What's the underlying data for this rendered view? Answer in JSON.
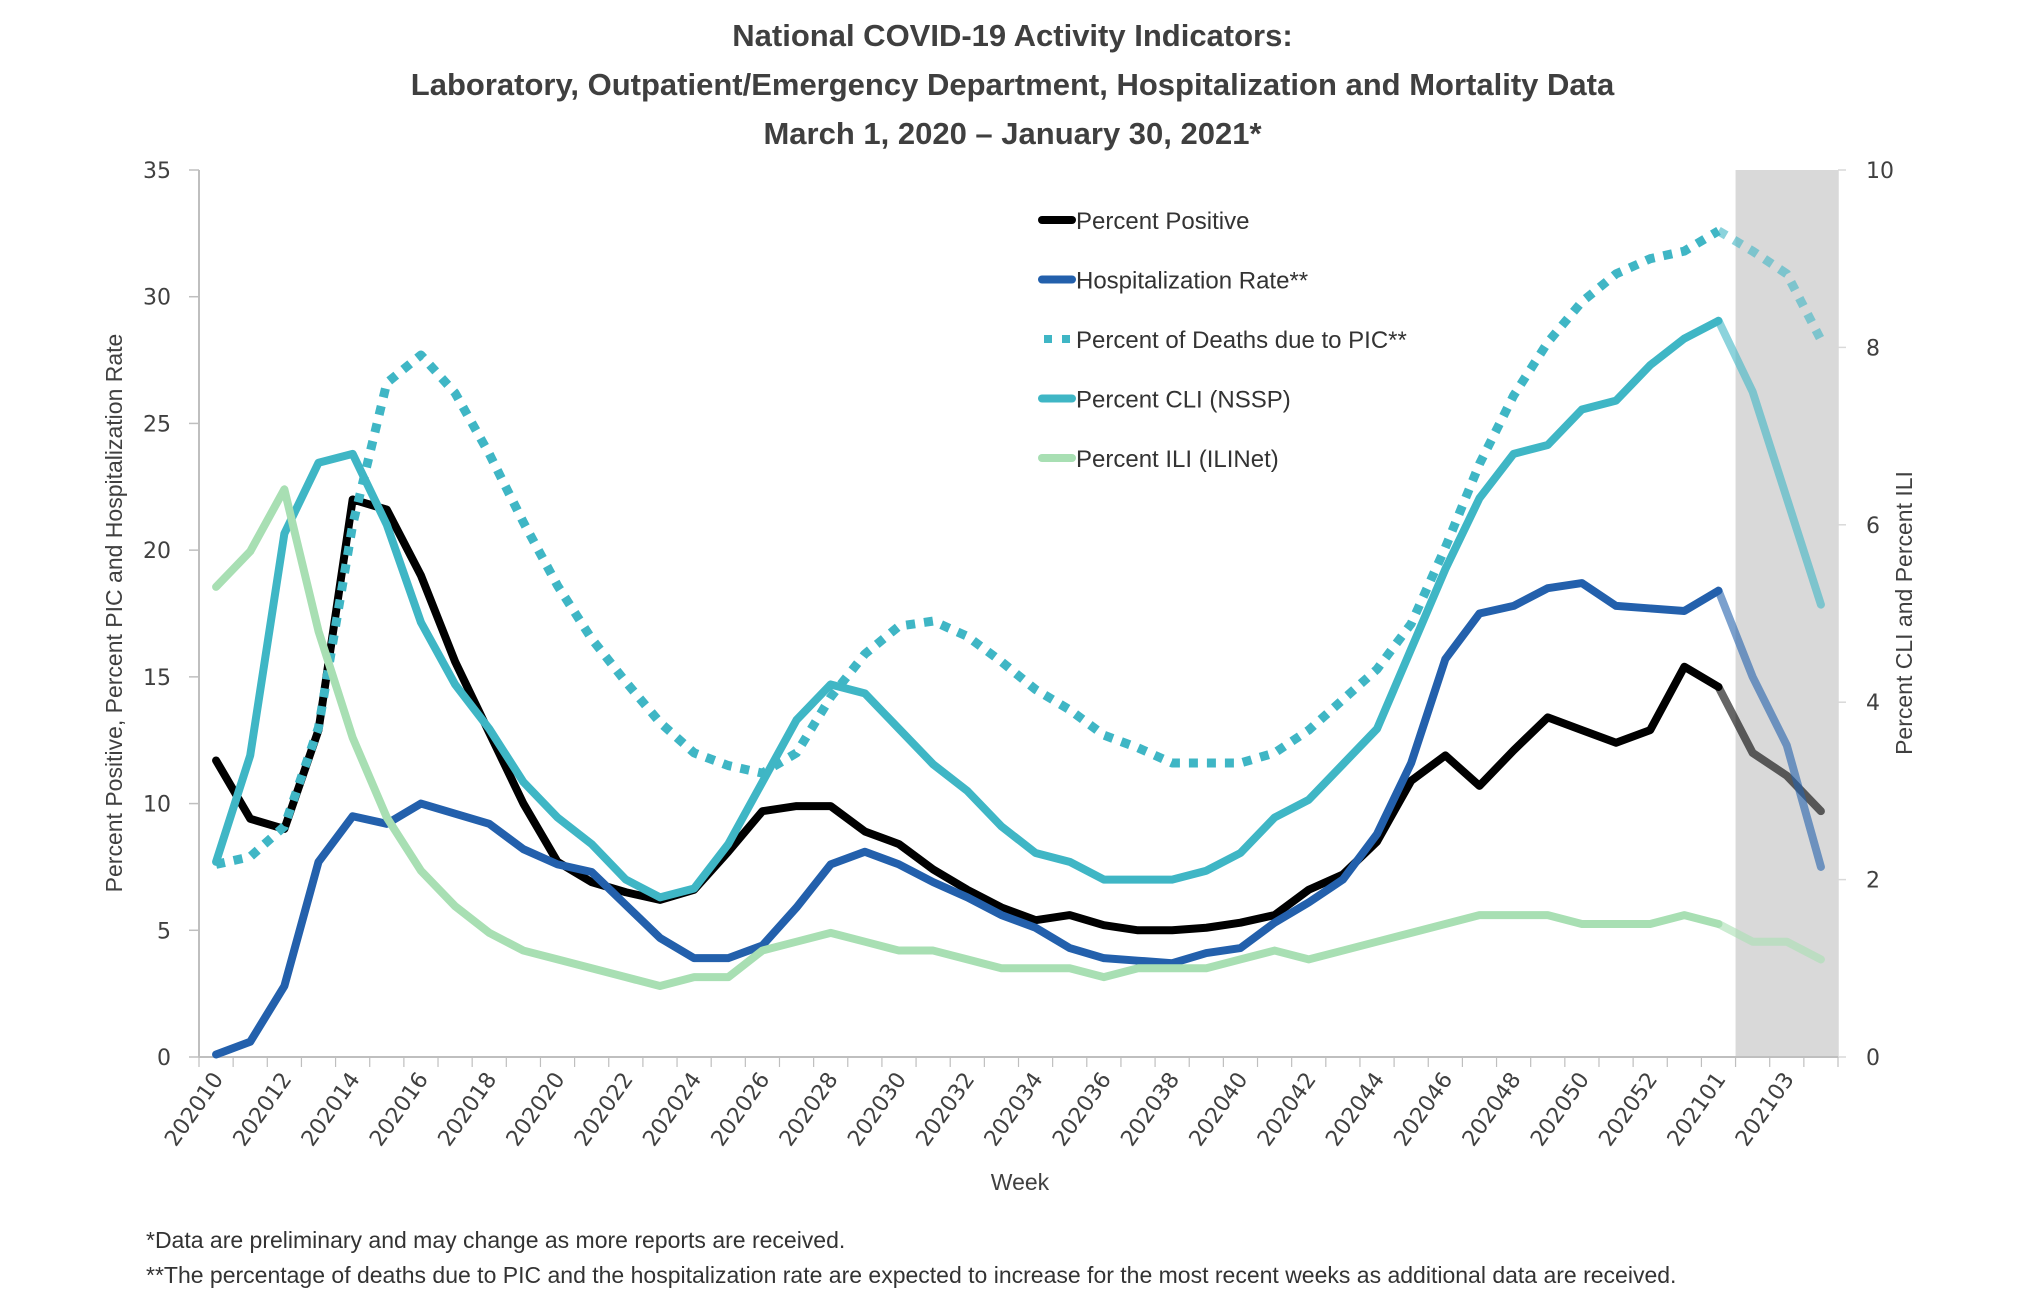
{
  "chart_data": {
    "type": "line",
    "title": [
      "National COVID-19 Activity Indicators:",
      "Laboratory, Outpatient/Emergency Department, Hospitalization and Mortality Data",
      "March 1, 2020 – January 30, 2021*"
    ],
    "xlabel": "Week",
    "ylabel_left": "Percent Positive, Percent PIC and Hospitalization Rate",
    "ylabel_right": "Percent CLI and Percent ILI",
    "ylim_left": [
      0,
      35
    ],
    "ylim_right": [
      0,
      10
    ],
    "yticks_left": [
      "0",
      "5",
      "10",
      "15",
      "20",
      "25",
      "30",
      "35"
    ],
    "yticks_right": [
      "0",
      "2",
      "4",
      "6",
      "8",
      "10"
    ],
    "grid": false,
    "legend_position": "top-center",
    "x": [
      "202010",
      "202011",
      "202012",
      "202013",
      "202014",
      "202015",
      "202016",
      "202017",
      "202018",
      "202019",
      "202020",
      "202021",
      "202022",
      "202023",
      "202024",
      "202025",
      "202026",
      "202027",
      "202028",
      "202029",
      "202030",
      "202031",
      "202032",
      "202033",
      "202034",
      "202035",
      "202036",
      "202037",
      "202038",
      "202039",
      "202040",
      "202041",
      "202042",
      "202043",
      "202044",
      "202045",
      "202046",
      "202047",
      "202048",
      "202049",
      "202050",
      "202051",
      "202052",
      "202053",
      "202101",
      "202102",
      "202103",
      "202104"
    ],
    "xtick_labels": [
      "202010",
      "202012",
      "202014",
      "202016",
      "202018",
      "202020",
      "202022",
      "202024",
      "202026",
      "202028",
      "202030",
      "202032",
      "202034",
      "202036",
      "202038",
      "202040",
      "202042",
      "202044",
      "202046",
      "202048",
      "202050",
      "202052",
      "202101",
      "202103"
    ],
    "shaded_region": {
      "from": "202102",
      "to": "202104",
      "color": "#d9d9d9"
    },
    "series": [
      {
        "name": "Percent Positive",
        "axis": "left",
        "style": "solid",
        "color": "#000000",
        "values": [
          11.7,
          9.4,
          9.0,
          12.9,
          22.0,
          21.6,
          19.0,
          15.6,
          12.8,
          10.0,
          7.7,
          6.9,
          6.5,
          6.2,
          6.6,
          8.1,
          9.7,
          9.9,
          9.9,
          8.9,
          8.4,
          7.4,
          6.6,
          5.9,
          5.4,
          5.6,
          5.2,
          5.0,
          5.0,
          5.1,
          5.3,
          5.6,
          6.6,
          7.2,
          8.5,
          10.9,
          11.9,
          10.7,
          12.1,
          13.4,
          12.9,
          12.4,
          12.9,
          15.4,
          14.6,
          12.0,
          11.1,
          9.7
        ]
      },
      {
        "name": "Hospitalization Rate**",
        "axis": "left",
        "style": "solid",
        "color": "#2360ac",
        "values": [
          0.1,
          0.6,
          2.8,
          7.7,
          9.5,
          9.2,
          10.0,
          9.6,
          9.2,
          8.2,
          7.6,
          7.3,
          6.0,
          4.7,
          3.9,
          3.9,
          4.4,
          5.9,
          7.6,
          8.1,
          7.6,
          6.9,
          6.3,
          5.6,
          5.1,
          4.3,
          3.9,
          3.8,
          3.7,
          4.1,
          4.3,
          5.3,
          6.1,
          7.0,
          8.8,
          11.6,
          15.7,
          17.5,
          17.8,
          18.5,
          18.7,
          17.8,
          17.7,
          17.6,
          18.4,
          15.0,
          12.3,
          7.5
        ]
      },
      {
        "name": "Percent of Deaths due to PIC**",
        "axis": "left",
        "style": "dotted",
        "color": "#3fb6c5",
        "values": [
          7.6,
          7.9,
          9.1,
          13.0,
          21.0,
          26.6,
          27.7,
          26.2,
          23.8,
          21.1,
          18.6,
          16.5,
          14.8,
          13.2,
          12.0,
          11.5,
          11.2,
          12.0,
          14.2,
          15.9,
          17.0,
          17.2,
          16.6,
          15.6,
          14.5,
          13.7,
          12.7,
          12.2,
          11.6,
          11.6,
          11.6,
          12.0,
          12.9,
          14.1,
          15.3,
          17.1,
          20.1,
          23.4,
          26.1,
          28.2,
          29.8,
          30.9,
          31.5,
          31.8,
          32.6,
          31.8,
          30.9,
          28.3
        ]
      },
      {
        "name": "Percent CLI (NSSP)",
        "axis": "right",
        "style": "solid",
        "color": "#3fb6c5",
        "values": [
          2.2,
          3.4,
          5.9,
          6.7,
          6.8,
          6.0,
          4.9,
          4.2,
          3.7,
          3.1,
          2.7,
          2.4,
          2.0,
          1.8,
          1.9,
          2.4,
          3.1,
          3.8,
          4.2,
          4.1,
          3.7,
          3.3,
          3.0,
          2.6,
          2.3,
          2.2,
          2.0,
          2.0,
          2.0,
          2.1,
          2.3,
          2.7,
          2.9,
          3.3,
          3.7,
          4.6,
          5.5,
          6.3,
          6.8,
          6.9,
          7.3,
          7.4,
          7.8,
          8.1,
          8.3,
          7.5,
          6.3,
          5.1
        ]
      },
      {
        "name": "Percent ILI (ILINet)",
        "axis": "right",
        "style": "solid",
        "color": "#a8dfb3",
        "values": [
          5.3,
          5.7,
          6.4,
          4.8,
          3.6,
          2.7,
          2.1,
          1.7,
          1.4,
          1.2,
          1.1,
          1.0,
          0.9,
          0.8,
          0.9,
          0.9,
          1.2,
          1.3,
          1.4,
          1.3,
          1.2,
          1.2,
          1.1,
          1.0,
          1.0,
          1.0,
          0.9,
          1.0,
          1.0,
          1.0,
          1.1,
          1.2,
          1.1,
          1.2,
          1.3,
          1.4,
          1.5,
          1.6,
          1.6,
          1.6,
          1.5,
          1.5,
          1.5,
          1.6,
          1.5,
          1.3,
          1.3,
          1.1
        ]
      }
    ]
  },
  "footnotes": [
    "*Data are preliminary and may change as more reports are received.",
    "**The percentage of deaths due to PIC and the hospitalization rate are expected to increase for the most recent weeks as additional data are received."
  ]
}
